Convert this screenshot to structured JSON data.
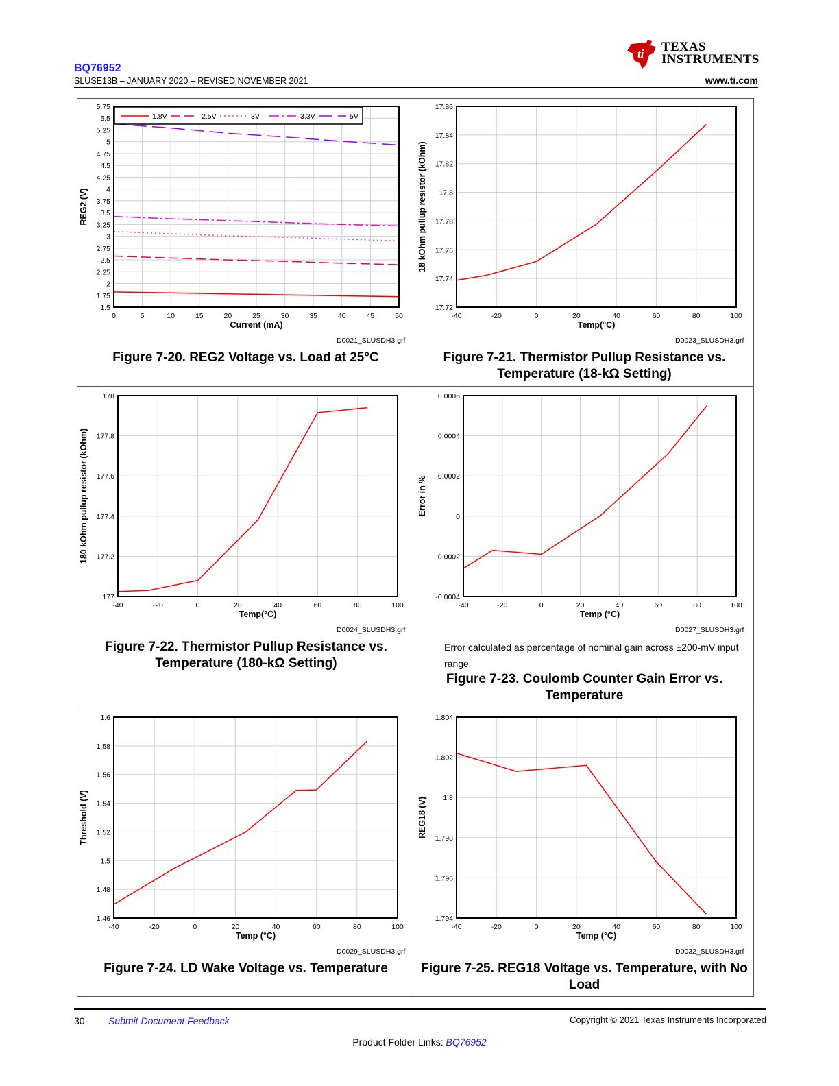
{
  "header": {
    "part_number": "BQ76952",
    "revision": "SLUSE13B – JANUARY 2020 – REVISED NOVEMBER 2021",
    "logo_text_line1": "Texas",
    "logo_text_line2": "Instruments",
    "url": "www.ti.com"
  },
  "figures": [
    {
      "caption": "Figure 7-20. REG2 Voltage vs. Load at 25°C",
      "file": "D0021_SLUSDH3.grf",
      "chart_data": {
        "type": "line",
        "xlabel": "Current (mA)",
        "ylabel": "REG2 (V)",
        "xlim": [
          0,
          50
        ],
        "ylim": [
          1.5,
          5.75
        ],
        "xticks": [
          "0",
          "5",
          "10",
          "15",
          "20",
          "25",
          "30",
          "35",
          "40",
          "45",
          "50"
        ],
        "yticks": [
          "1.5",
          "1.75",
          "2",
          "2.25",
          "2.5",
          "2.75",
          "3",
          "3.25",
          "3.5",
          "3.75",
          "4",
          "4.25",
          "4.5",
          "4.75",
          "5",
          "5.25",
          "5.5",
          "5.75"
        ],
        "legend": "top",
        "x": [
          0,
          10,
          20,
          30,
          40,
          50
        ],
        "series": [
          {
            "name": "1.8V",
            "color": "#ff0000",
            "dash": "solid",
            "values": [
              1.82,
              1.8,
              1.78,
              1.76,
              1.74,
              1.72
            ]
          },
          {
            "name": "2.5V",
            "color": "#e8005a",
            "dash": "dash",
            "values": [
              2.58,
              2.54,
              2.5,
              2.47,
              2.43,
              2.4
            ]
          },
          {
            "name": "3V",
            "color": "#ff33cc",
            "dash": "dot",
            "values": [
              3.1,
              3.05,
              3.01,
              2.98,
              2.94,
              2.9
            ]
          },
          {
            "name": "3.3V",
            "color": "#ee00ee",
            "dash": "dashdot",
            "values": [
              3.42,
              3.37,
              3.33,
              3.29,
              3.25,
              3.22
            ]
          },
          {
            "name": "5V",
            "color": "#9900ff",
            "dash": "longdash",
            "values": [
              5.38,
              5.29,
              5.18,
              5.1,
              5.01,
              4.93
            ]
          }
        ]
      }
    },
    {
      "caption": "Figure 7-21. Thermistor Pullup Resistance vs. Temperature (18-kΩ Setting)",
      "file": "D0023_SLUSDH3.grf",
      "chart_data": {
        "type": "line",
        "xlabel": "Temp(°C)",
        "ylabel": "18 kOhm pullup resistor (kOhm)",
        "xlim": [
          -40,
          100
        ],
        "ylim": [
          17.72,
          17.86
        ],
        "xticks": [
          "-40",
          "-20",
          "0",
          "20",
          "40",
          "60",
          "80",
          "100"
        ],
        "yticks": [
          "17.72",
          "17.74",
          "17.76",
          "17.78",
          "17.8",
          "17.82",
          "17.84",
          "17.86"
        ],
        "series": [
          {
            "color": "#ff0000",
            "x": [
              -40,
              -25,
              0,
              30,
              60,
              85
            ],
            "values": [
              17.7388,
              17.7422,
              17.7518,
              17.7778,
              17.8148,
              17.8474
            ]
          }
        ]
      }
    },
    {
      "caption": "Figure 7-22. Thermistor Pullup Resistance vs. Temperature (180-kΩ Setting)",
      "file": "D0024_SLUSDH3.grf",
      "chart_data": {
        "type": "line",
        "xlabel": "Temp(°C)",
        "ylabel": "180 kOhm pullup resistor (kOhm)",
        "xlim": [
          -40,
          100
        ],
        "ylim": [
          177,
          178
        ],
        "xticks": [
          "-40",
          "-20",
          "0",
          "20",
          "40",
          "60",
          "80",
          "100"
        ],
        "yticks": [
          "177",
          "177.2",
          "177.4",
          "177.6",
          "177.8",
          "178"
        ],
        "series": [
          {
            "color": "#ff0000",
            "x": [
              -40,
              -25,
              0,
              30,
              60,
              85
            ],
            "values": [
              177.025,
              177.03,
              177.08,
              177.38,
              177.915,
              177.94
            ]
          }
        ]
      }
    },
    {
      "caption": "Figure 7-23. Coulomb Counter Gain Error vs. Temperature",
      "note": "Error calculated as percentage of nominal gain across ±200-mV input range",
      "file": "D0027_SLUSDH3.grf",
      "chart_data": {
        "type": "line",
        "xlabel": "Temp (°C)",
        "ylabel": "Error in %",
        "xlim": [
          -40,
          100
        ],
        "ylim": [
          -0.0004,
          0.0006
        ],
        "xticks": [
          "-40",
          "-20",
          "0",
          "20",
          "40",
          "60",
          "80",
          "100"
        ],
        "yticks": [
          "-0.0004",
          "-0.0002",
          "0",
          "0.0002",
          "0.0004",
          "0.0006"
        ],
        "series": [
          {
            "color": "#ff0000",
            "x": [
              -40,
              -25,
              0,
              30,
              65,
              85
            ],
            "values": [
              -0.00026,
              -0.00017,
              -0.00019,
              0.0,
              0.00031,
              0.00055
            ]
          }
        ]
      }
    },
    {
      "caption": "Figure 7-24. LD Wake Voltage vs. Temperature",
      "file": "D0029_SLUSDH3.grf",
      "chart_data": {
        "type": "line",
        "xlabel": "Temp (°C)",
        "ylabel": "Threshold (V)",
        "xlim": [
          -40,
          100
        ],
        "ylim": [
          1.46,
          1.6
        ],
        "xticks": [
          "-40",
          "-20",
          "0",
          "20",
          "40",
          "60",
          "80",
          "100"
        ],
        "yticks": [
          "1.46",
          "1.48",
          "1.5",
          "1.52",
          "1.54",
          "1.56",
          "1.58",
          "1.6"
        ],
        "series": [
          {
            "color": "#ff0000",
            "x": [
              -40,
              -10,
              25,
              50,
              60,
              85
            ],
            "values": [
              1.4695,
              1.4948,
              1.5198,
              1.549,
              1.5493,
              1.5833
            ]
          }
        ]
      }
    },
    {
      "caption": "Figure 7-25. REG18 Voltage vs. Temperature, with No Load",
      "file": "D0032_SLUSDH3.grf",
      "chart_data": {
        "type": "line",
        "xlabel": "Temp (°C)",
        "ylabel": "REG18 (V)",
        "xlim": [
          -40,
          100
        ],
        "ylim": [
          1.794,
          1.804
        ],
        "xticks": [
          "-40",
          "-20",
          "0",
          "20",
          "40",
          "60",
          "80",
          "100"
        ],
        "yticks": [
          "1.794",
          "1.796",
          "1.798",
          "1.8",
          "1.802",
          "1.804"
        ],
        "series": [
          {
            "color": "#ff0000",
            "x": [
              -40,
              -10,
              25,
              60,
              85
            ],
            "values": [
              1.8022,
              1.8013,
              1.8016,
              1.7968,
              1.7942
            ]
          }
        ]
      }
    }
  ],
  "footer": {
    "page": "30",
    "feedback": "Submit Document Feedback",
    "copyright": "Copyright © 2021 Texas Instruments Incorporated",
    "product_folder_label": "Product Folder Links: ",
    "product_folder_link": "BQ76952"
  }
}
